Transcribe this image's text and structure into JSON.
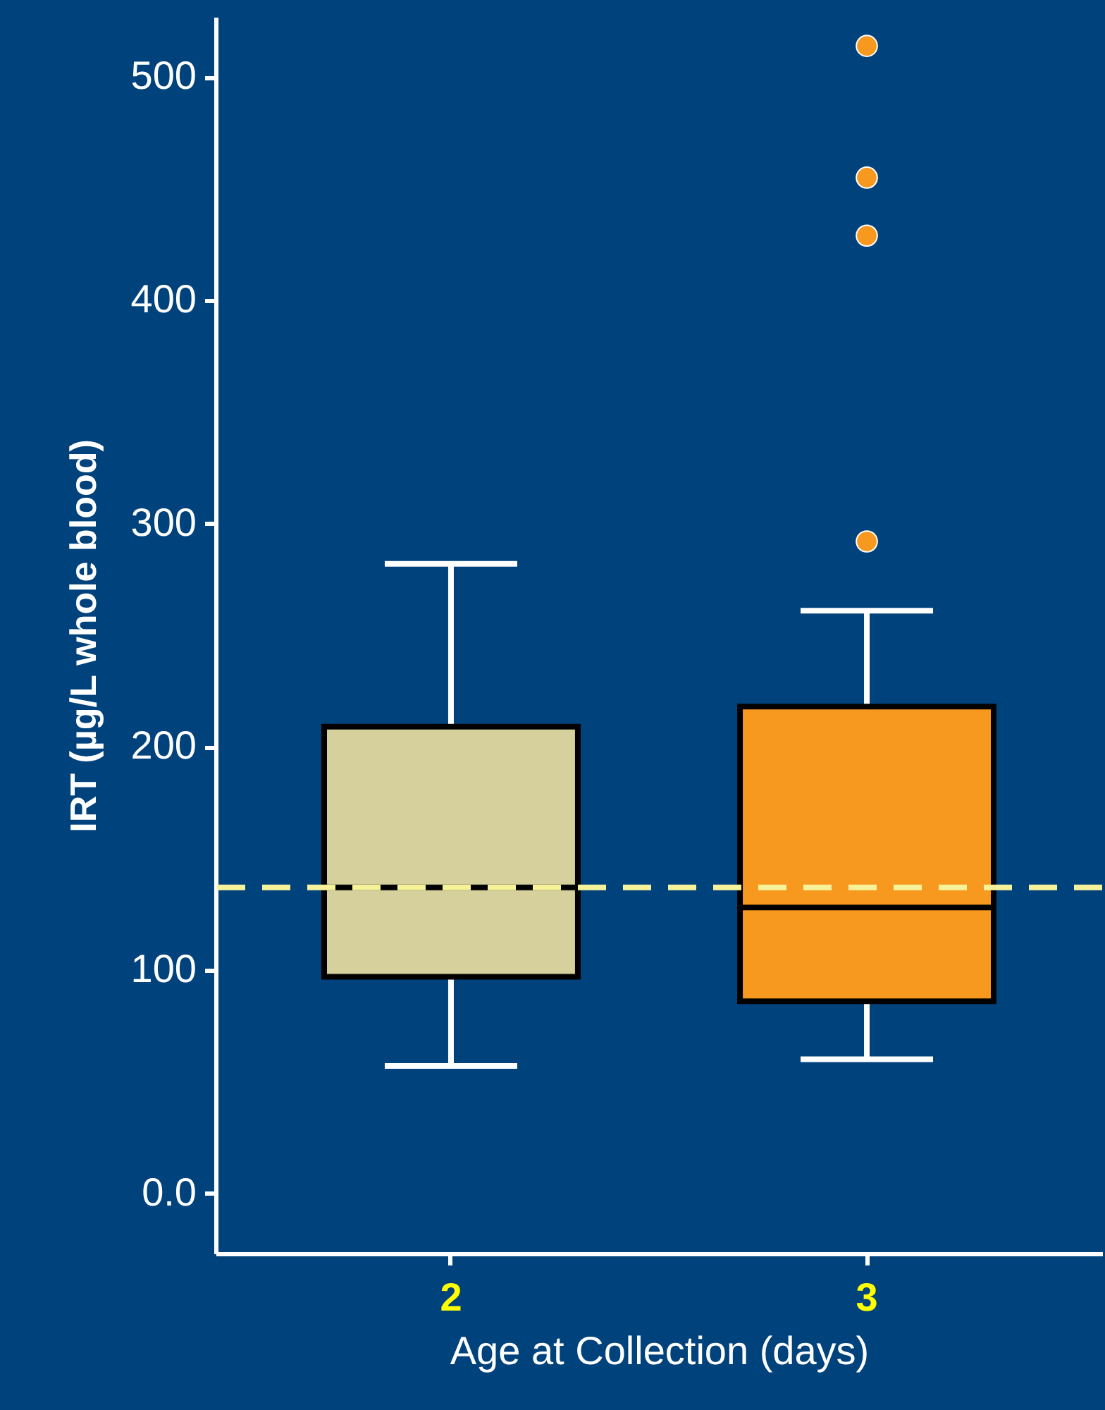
{
  "chart_data": {
    "type": "box",
    "xlabel": "Age at Collection (days)",
    "ylabel": "IRT (µg/L whole blood)",
    "categories": [
      "2",
      "3"
    ],
    "colors": [
      "#d6d09c",
      "#f7981f"
    ],
    "boxes": [
      {
        "low": 57,
        "q1": 97,
        "median": 137,
        "q3": 209,
        "high": 282
      },
      {
        "low": 60,
        "q1": 86,
        "median": 128,
        "q3": 218,
        "high": 261,
        "outliers": [
          514,
          455,
          429,
          292
        ]
      }
    ],
    "ylim": [
      -27,
      527
    ],
    "yticks": [
      {
        "value": 0,
        "label": "0.0"
      },
      100,
      200,
      300,
      400,
      500
    ],
    "ref_lines": [
      {
        "axis": "y",
        "value": 137,
        "color": "#f6f29a",
        "line_style": "dashed"
      }
    ],
    "grid": false
  }
}
